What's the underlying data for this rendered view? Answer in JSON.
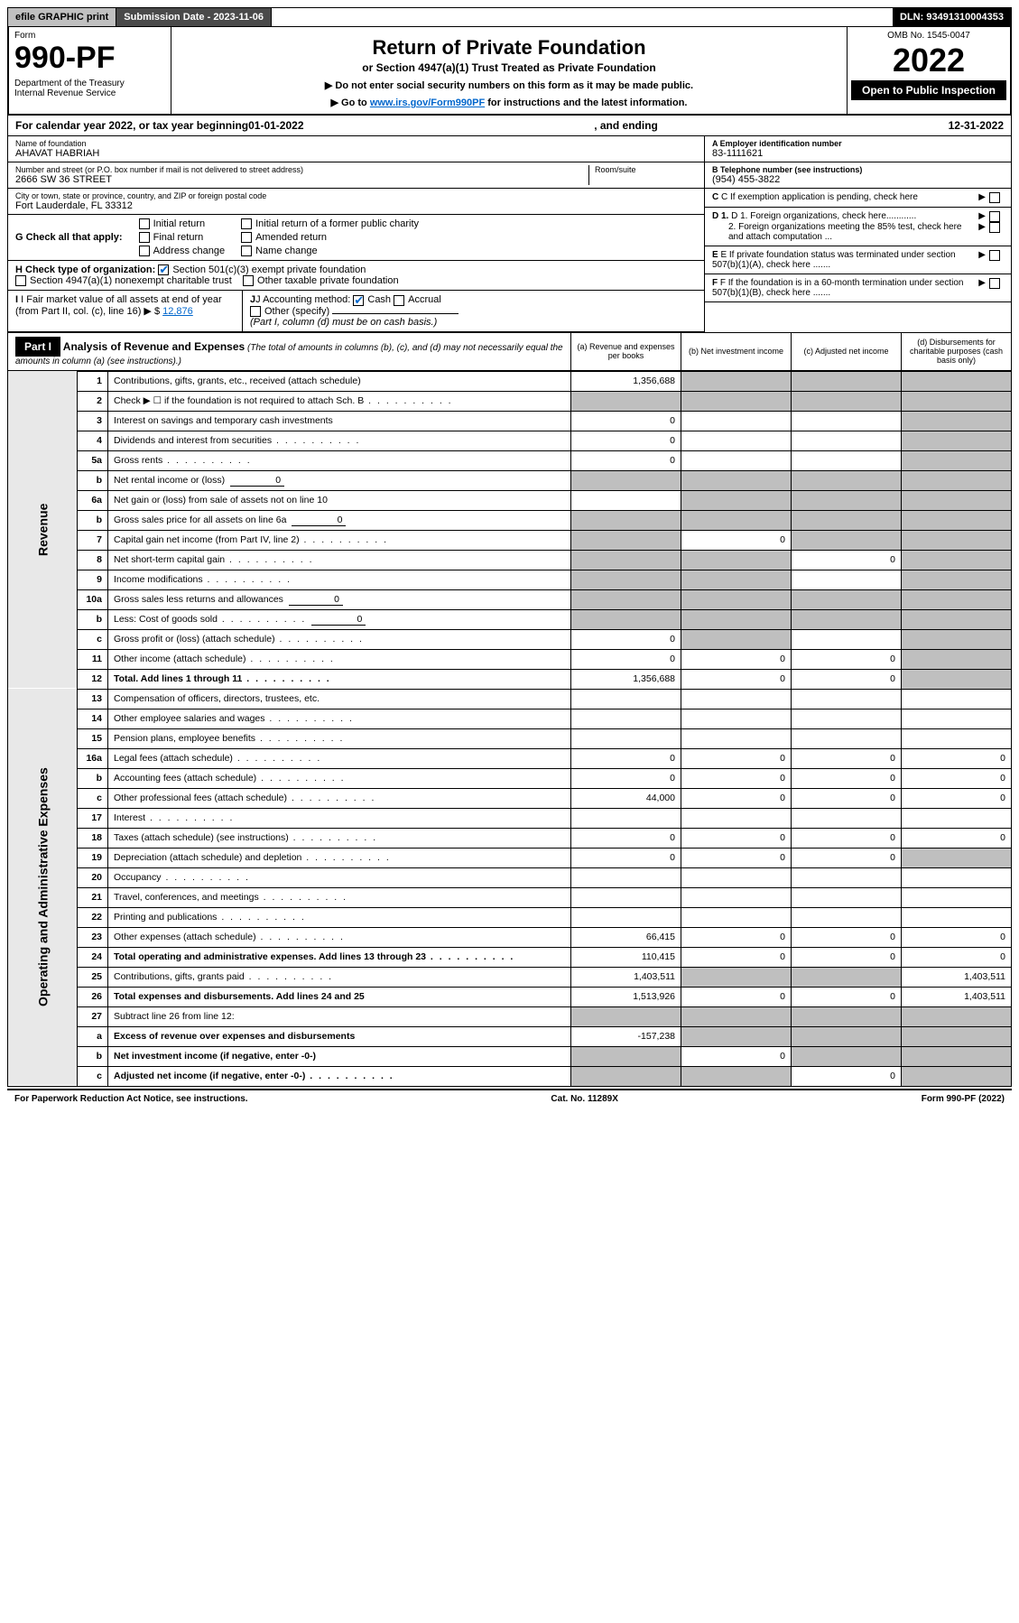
{
  "topbar": {
    "efile": "efile GRAPHIC print",
    "subdate_label": "Submission Date - 2023-11-06",
    "dln": "DLN: 93491310004353"
  },
  "header": {
    "form_label": "Form",
    "form_no": "990-PF",
    "dept1": "Department of the Treasury",
    "dept2": "Internal Revenue Service",
    "title": "Return of Private Foundation",
    "subtitle": "or Section 4947(a)(1) Trust Treated as Private Foundation",
    "instr1": "▶ Do not enter social security numbers on this form as it may be made public.",
    "instr2_pre": "▶ Go to ",
    "instr2_link": "www.irs.gov/Form990PF",
    "instr2_post": " for instructions and the latest information.",
    "omb": "OMB No. 1545-0047",
    "year": "2022",
    "open_public": "Open to Public Inspection"
  },
  "calendar": {
    "pre": "For calendar year 2022, or tax year beginning ",
    "begin": "01-01-2022",
    "mid": " , and ending ",
    "end": "12-31-2022"
  },
  "entity": {
    "name_lbl": "Name of foundation",
    "name": "AHAVAT HABRIAH",
    "addr_lbl": "Number and street (or P.O. box number if mail is not delivered to street address)",
    "addr": "2666 SW 36 STREET",
    "room_lbl": "Room/suite",
    "city_lbl": "City or town, state or province, country, and ZIP or foreign postal code",
    "city": "Fort Lauderdale, FL  33312",
    "a_lbl": "A Employer identification number",
    "a_val": "83-1111621",
    "b_lbl": "B Telephone number (see instructions)",
    "b_val": "(954) 455-3822",
    "c_lbl": "C If exemption application is pending, check here",
    "d1_lbl": "D 1. Foreign organizations, check here............",
    "d2_lbl": "2. Foreign organizations meeting the 85% test, check here and attach computation ...",
    "e_lbl": "E  If private foundation status was terminated under section 507(b)(1)(A), check here .......",
    "f_lbl": "F  If the foundation is in a 60-month termination under section 507(b)(1)(B), check here .......",
    "g_lbl": "G Check all that apply:",
    "g_opts": [
      "Initial return",
      "Final return",
      "Address change",
      "Initial return of a former public charity",
      "Amended return",
      "Name change"
    ],
    "h_lbl": "H Check type of organization:",
    "h_opt1": "Section 501(c)(3) exempt private foundation",
    "h_opt2": "Section 4947(a)(1) nonexempt charitable trust",
    "h_opt3": "Other taxable private foundation",
    "i_lbl": "I Fair market value of all assets at end of year (from Part II, col. (c), line 16)",
    "i_val": "12,876",
    "j_lbl": "J Accounting method:",
    "j_cash": "Cash",
    "j_accrual": "Accrual",
    "j_other": "Other (specify)",
    "j_note": "(Part I, column (d) must be on cash basis.)"
  },
  "part1": {
    "label": "Part I",
    "title": "Analysis of Revenue and Expenses",
    "title_note": " (The total of amounts in columns (b), (c), and (d) may not necessarily equal the amounts in column (a) (see instructions).)",
    "col_a": "(a)   Revenue and expenses per books",
    "col_b": "(b)   Net investment income",
    "col_c": "(c)   Adjusted net income",
    "col_d": "(d)   Disbursements for charitable purposes (cash basis only)",
    "side_rev": "Revenue",
    "side_exp": "Operating and Administrative Expenses"
  },
  "rows": [
    {
      "n": "1",
      "d": "Contributions, gifts, grants, etc., received (attach schedule)",
      "a": "1,356,688",
      "b": "shade",
      "c": "shade",
      "dd": "shade"
    },
    {
      "n": "2",
      "d": "Check ▶ ☐ if the foundation is not required to attach Sch. B",
      "dots": true,
      "a": "shade",
      "b": "shade",
      "c": "shade",
      "dd": "shade"
    },
    {
      "n": "3",
      "d": "Interest on savings and temporary cash investments",
      "a": "0",
      "b": "",
      "c": "",
      "dd": "shade"
    },
    {
      "n": "4",
      "d": "Dividends and interest from securities",
      "dots": true,
      "a": "0",
      "b": "",
      "c": "",
      "dd": "shade"
    },
    {
      "n": "5a",
      "d": "Gross rents",
      "dots": true,
      "a": "0",
      "b": "",
      "c": "",
      "dd": "shade"
    },
    {
      "n": "b",
      "d": "Net rental income or (loss)",
      "inline": "0",
      "a": "shade",
      "b": "shade",
      "c": "shade",
      "dd": "shade"
    },
    {
      "n": "6a",
      "d": "Net gain or (loss) from sale of assets not on line 10",
      "a": "",
      "b": "shade",
      "c": "shade",
      "dd": "shade"
    },
    {
      "n": "b",
      "d": "Gross sales price for all assets on line 6a",
      "inline": "0",
      "a": "shade",
      "b": "shade",
      "c": "shade",
      "dd": "shade"
    },
    {
      "n": "7",
      "d": "Capital gain net income (from Part IV, line 2)",
      "dots": true,
      "a": "shade",
      "b": "0",
      "c": "shade",
      "dd": "shade"
    },
    {
      "n": "8",
      "d": "Net short-term capital gain",
      "dots": true,
      "a": "shade",
      "b": "shade",
      "c": "0",
      "dd": "shade"
    },
    {
      "n": "9",
      "d": "Income modifications",
      "dots": true,
      "a": "shade",
      "b": "shade",
      "c": "",
      "dd": "shade"
    },
    {
      "n": "10a",
      "d": "Gross sales less returns and allowances",
      "inline": "0",
      "a": "shade",
      "b": "shade",
      "c": "shade",
      "dd": "shade"
    },
    {
      "n": "b",
      "d": "Less: Cost of goods sold",
      "dots": true,
      "inline": "0",
      "a": "shade",
      "b": "shade",
      "c": "shade",
      "dd": "shade"
    },
    {
      "n": "c",
      "d": "Gross profit or (loss) (attach schedule)",
      "dots": true,
      "a": "0",
      "b": "shade",
      "c": "",
      "dd": "shade"
    },
    {
      "n": "11",
      "d": "Other income (attach schedule)",
      "dots": true,
      "a": "0",
      "b": "0",
      "c": "0",
      "dd": "shade"
    },
    {
      "n": "12",
      "d": "Total. Add lines 1 through 11",
      "dots": true,
      "bold": true,
      "a": "1,356,688",
      "b": "0",
      "c": "0",
      "dd": "shade"
    },
    {
      "n": "13",
      "d": "Compensation of officers, directors, trustees, etc.",
      "a": "",
      "b": "",
      "c": "",
      "dd": ""
    },
    {
      "n": "14",
      "d": "Other employee salaries and wages",
      "dots": true,
      "a": "",
      "b": "",
      "c": "",
      "dd": ""
    },
    {
      "n": "15",
      "d": "Pension plans, employee benefits",
      "dots": true,
      "a": "",
      "b": "",
      "c": "",
      "dd": ""
    },
    {
      "n": "16a",
      "d": "Legal fees (attach schedule)",
      "dots": true,
      "a": "0",
      "b": "0",
      "c": "0",
      "dd": "0"
    },
    {
      "n": "b",
      "d": "Accounting fees (attach schedule)",
      "dots": true,
      "a": "0",
      "b": "0",
      "c": "0",
      "dd": "0"
    },
    {
      "n": "c",
      "d": "Other professional fees (attach schedule)",
      "dots": true,
      "a": "44,000",
      "b": "0",
      "c": "0",
      "dd": "0"
    },
    {
      "n": "17",
      "d": "Interest",
      "dots": true,
      "a": "",
      "b": "",
      "c": "",
      "dd": ""
    },
    {
      "n": "18",
      "d": "Taxes (attach schedule) (see instructions)",
      "dots": true,
      "a": "0",
      "b": "0",
      "c": "0",
      "dd": "0"
    },
    {
      "n": "19",
      "d": "Depreciation (attach schedule) and depletion",
      "dots": true,
      "a": "0",
      "b": "0",
      "c": "0",
      "dd": "shade"
    },
    {
      "n": "20",
      "d": "Occupancy",
      "dots": true,
      "a": "",
      "b": "",
      "c": "",
      "dd": ""
    },
    {
      "n": "21",
      "d": "Travel, conferences, and meetings",
      "dots": true,
      "a": "",
      "b": "",
      "c": "",
      "dd": ""
    },
    {
      "n": "22",
      "d": "Printing and publications",
      "dots": true,
      "a": "",
      "b": "",
      "c": "",
      "dd": ""
    },
    {
      "n": "23",
      "d": "Other expenses (attach schedule)",
      "dots": true,
      "a": "66,415",
      "b": "0",
      "c": "0",
      "dd": "0"
    },
    {
      "n": "24",
      "d": "Total operating and administrative expenses. Add lines 13 through 23",
      "dots": true,
      "bold": true,
      "a": "110,415",
      "b": "0",
      "c": "0",
      "dd": "0"
    },
    {
      "n": "25",
      "d": "Contributions, gifts, grants paid",
      "dots": true,
      "a": "1,403,511",
      "b": "shade",
      "c": "shade",
      "dd": "1,403,511"
    },
    {
      "n": "26",
      "d": "Total expenses and disbursements. Add lines 24 and 25",
      "bold": true,
      "a": "1,513,926",
      "b": "0",
      "c": "0",
      "dd": "1,403,511"
    },
    {
      "n": "27",
      "d": "Subtract line 26 from line 12:",
      "a": "shade",
      "b": "shade",
      "c": "shade",
      "dd": "shade"
    },
    {
      "n": "a",
      "d": "Excess of revenue over expenses and disbursements",
      "bold": true,
      "a": "-157,238",
      "b": "shade",
      "c": "shade",
      "dd": "shade"
    },
    {
      "n": "b",
      "d": "Net investment income (if negative, enter -0-)",
      "bold": true,
      "a": "shade",
      "b": "0",
      "c": "shade",
      "dd": "shade"
    },
    {
      "n": "c",
      "d": "Adjusted net income (if negative, enter -0-)",
      "dots": true,
      "bold": true,
      "a": "shade",
      "b": "shade",
      "c": "0",
      "dd": "shade"
    }
  ],
  "footer": {
    "left": "For Paperwork Reduction Act Notice, see instructions.",
    "mid": "Cat. No. 11289X",
    "right": "Form 990-PF (2022)"
  }
}
